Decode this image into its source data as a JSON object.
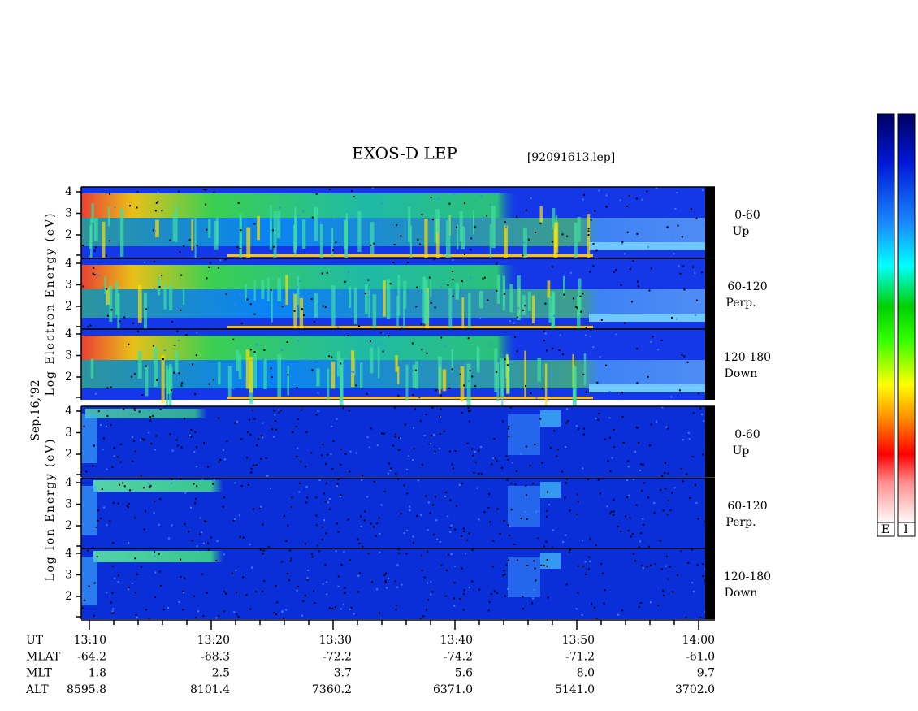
{
  "title": "EXOS-D LEP",
  "file": "[92091613.lep]",
  "date": "Sep.16,'92",
  "electron_label": "Log Electron Energy (eV)",
  "ion_label": "Log Ion Energy (eV)",
  "yticks": [
    4,
    3,
    2
  ],
  "pitch_angles": [
    {
      "range": "0-60",
      "dir": "Up"
    },
    {
      "range": "60-120",
      "dir": "Perp."
    },
    {
      "range": "120-180",
      "dir": "Down"
    }
  ],
  "colorbar_labels": [
    "E",
    "I"
  ],
  "ephemeris": {
    "rows": [
      {
        "name": "UT",
        "values": [
          "13:10",
          "13:20",
          "13:30",
          "13:40",
          "13:50",
          "14:00"
        ]
      },
      {
        "name": "MLAT",
        "values": [
          "-64.2",
          "-68.3",
          "-72.2",
          "-74.2",
          "-71.2",
          "-61.0"
        ]
      },
      {
        "name": "MLT",
        "values": [
          "1.8",
          "2.5",
          "3.7",
          "5.6",
          "8.0",
          "9.7"
        ]
      },
      {
        "name": "ALT",
        "values": [
          "8595.8",
          "8101.4",
          "7360.2",
          "6371.0",
          "5141.0",
          "3702.0"
        ]
      }
    ]
  }
}
